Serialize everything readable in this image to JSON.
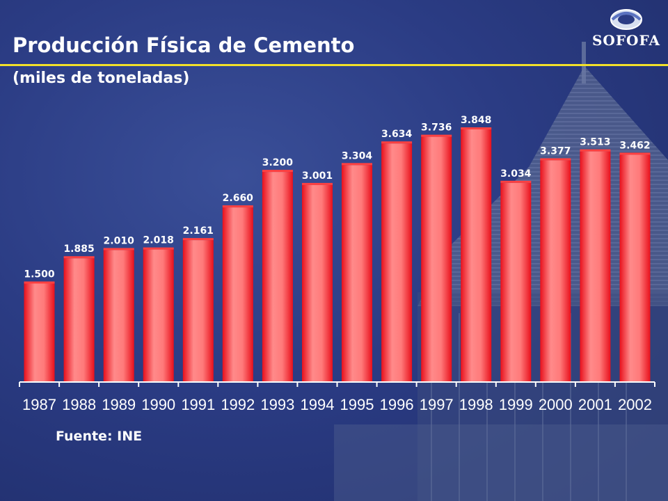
{
  "header": {
    "title": "Producción Física de Cemento",
    "subtitle": "(miles de toneladas)",
    "logo_text": "SOFOFA"
  },
  "footer": {
    "source": "Fuente: INE"
  },
  "colors": {
    "accent_rule": "#f2e02a",
    "bar_fill": "#ff6f6f",
    "bar_edge": "#e8101c",
    "text": "#ffffff"
  },
  "chart_data": {
    "type": "bar",
    "categories": [
      "1987",
      "1988",
      "1989",
      "1990",
      "1991",
      "1992",
      "1993",
      "1994",
      "1995",
      "1996",
      "1997",
      "1998",
      "1999",
      "2000",
      "2001",
      "2002"
    ],
    "values": [
      1500,
      1885,
      2010,
      2018,
      2161,
      2660,
      3200,
      3001,
      3304,
      3634,
      3736,
      3848,
      3034,
      3377,
      3513,
      3462
    ],
    "data_labels": [
      "1.500",
      "1.885",
      "2.010",
      "2.018",
      "2.161",
      "2.660",
      "3.200",
      "3.001",
      "3.304",
      "3.634",
      "3.736",
      "3.848",
      "3.034",
      "3.377",
      "3.513",
      "3.462"
    ],
    "title": "Producción Física de Cemento",
    "ylabel": "",
    "xlabel": "",
    "ylim": [
      0,
      3848
    ],
    "grid": false,
    "legend": "none"
  }
}
